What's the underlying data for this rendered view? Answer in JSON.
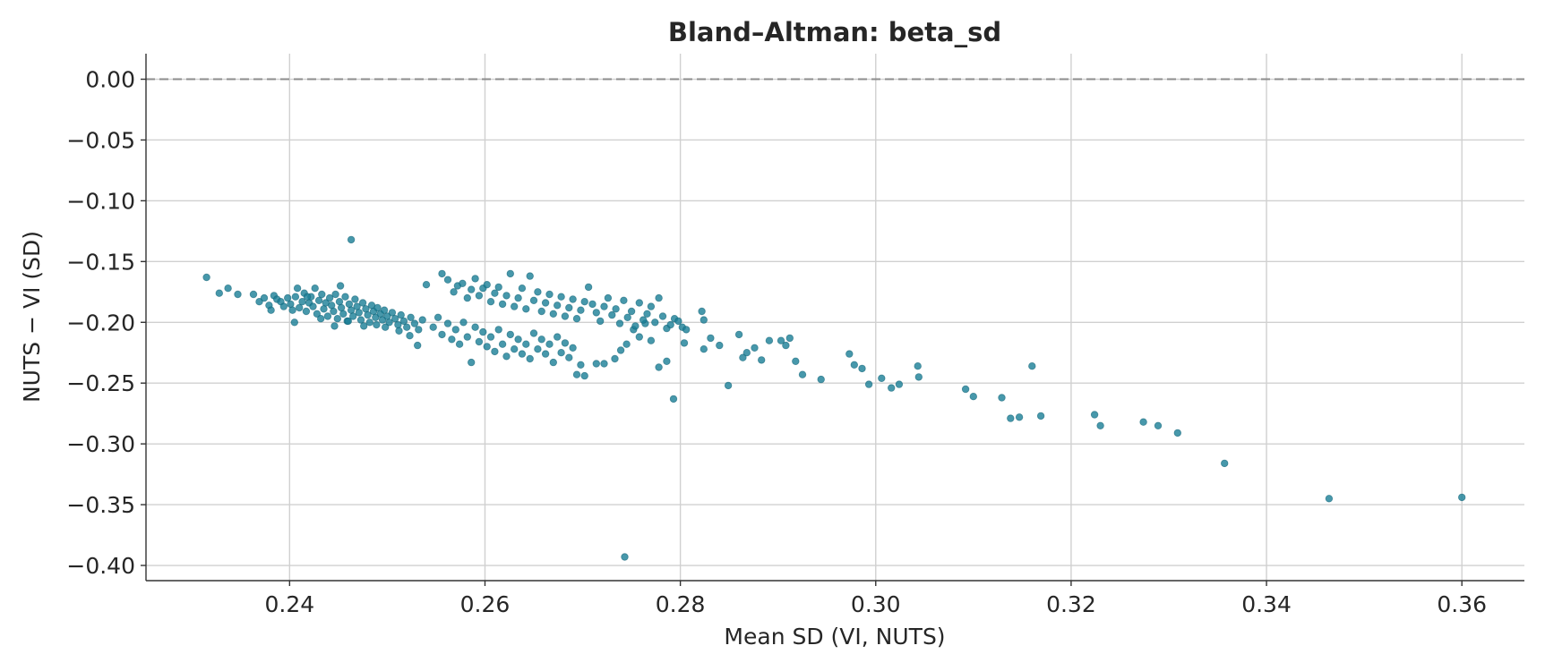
{
  "chart_data": {
    "type": "scatter",
    "title": "Bland–Altman: beta_sd",
    "xlabel": "Mean SD (VI, NUTS)",
    "ylabel": "NUTS − VI (SD)",
    "xlim": [
      0.2253,
      0.3664
    ],
    "ylim": [
      -0.4125,
      0.021
    ],
    "xticks": [
      0.24,
      0.26,
      0.28,
      0.3,
      0.32,
      0.34,
      0.36
    ],
    "xtick_labels": [
      "0.24",
      "0.26",
      "0.28",
      "0.30",
      "0.32",
      "0.34",
      "0.36"
    ],
    "yticks": [
      0.0,
      -0.05,
      -0.1,
      -0.15,
      -0.2,
      -0.25,
      -0.3,
      -0.35,
      -0.4
    ],
    "ytick_labels": [
      "0.00",
      "−0.05",
      "−0.10",
      "−0.15",
      "−0.20",
      "−0.25",
      "−0.30",
      "−0.35",
      "−0.40"
    ],
    "grid": true,
    "reference_line_y": 0.0,
    "colors": {
      "point": "#197e96",
      "reference_line": "#8c8c8c",
      "grid": "#d0d0d0"
    },
    "points": [
      [
        0.2315,
        -0.163
      ],
      [
        0.2328,
        -0.176
      ],
      [
        0.2337,
        -0.172
      ],
      [
        0.2347,
        -0.177
      ],
      [
        0.2363,
        -0.177
      ],
      [
        0.2369,
        -0.183
      ],
      [
        0.2374,
        -0.18
      ],
      [
        0.2379,
        -0.186
      ],
      [
        0.2381,
        -0.19
      ],
      [
        0.2384,
        -0.178
      ],
      [
        0.2387,
        -0.181
      ],
      [
        0.2391,
        -0.183
      ],
      [
        0.2394,
        -0.187
      ],
      [
        0.2398,
        -0.18
      ],
      [
        0.2401,
        -0.185
      ],
      [
        0.2403,
        -0.19
      ],
      [
        0.2406,
        -0.179
      ],
      [
        0.2408,
        -0.172
      ],
      [
        0.241,
        -0.188
      ],
      [
        0.2413,
        -0.183
      ],
      [
        0.2415,
        -0.176
      ],
      [
        0.2417,
        -0.191
      ],
      [
        0.242,
        -0.184
      ],
      [
        0.2422,
        -0.179
      ],
      [
        0.2424,
        -0.187
      ],
      [
        0.2426,
        -0.172
      ],
      [
        0.2428,
        -0.193
      ],
      [
        0.243,
        -0.182
      ],
      [
        0.2433,
        -0.177
      ],
      [
        0.2435,
        -0.189
      ],
      [
        0.2437,
        -0.184
      ],
      [
        0.2439,
        -0.195
      ],
      [
        0.2441,
        -0.18
      ],
      [
        0.2443,
        -0.186
      ],
      [
        0.2445,
        -0.191
      ],
      [
        0.2447,
        -0.177
      ],
      [
        0.2449,
        -0.197
      ],
      [
        0.2451,
        -0.183
      ],
      [
        0.2453,
        -0.188
      ],
      [
        0.2455,
        -0.193
      ],
      [
        0.2457,
        -0.179
      ],
      [
        0.2459,
        -0.199
      ],
      [
        0.2461,
        -0.185
      ],
      [
        0.2463,
        -0.19
      ],
      [
        0.2465,
        -0.195
      ],
      [
        0.2467,
        -0.181
      ],
      [
        0.2469,
        -0.187
      ],
      [
        0.2471,
        -0.192
      ],
      [
        0.2473,
        -0.198
      ],
      [
        0.2475,
        -0.184
      ],
      [
        0.2478,
        -0.189
      ],
      [
        0.248,
        -0.194
      ],
      [
        0.2482,
        -0.2
      ],
      [
        0.2484,
        -0.186
      ],
      [
        0.2486,
        -0.191
      ],
      [
        0.2488,
        -0.196
      ],
      [
        0.249,
        -0.188
      ],
      [
        0.2493,
        -0.193
      ],
      [
        0.2495,
        -0.198
      ],
      [
        0.2497,
        -0.19
      ],
      [
        0.25,
        -0.195
      ],
      [
        0.2502,
        -0.2
      ],
      [
        0.2505,
        -0.192
      ],
      [
        0.2508,
        -0.197
      ],
      [
        0.2511,
        -0.202
      ],
      [
        0.2514,
        -0.194
      ],
      [
        0.2517,
        -0.199
      ],
      [
        0.252,
        -0.204
      ],
      [
        0.2524,
        -0.196
      ],
      [
        0.2528,
        -0.201
      ],
      [
        0.2532,
        -0.206
      ],
      [
        0.2536,
        -0.198
      ],
      [
        0.2405,
        -0.2
      ],
      [
        0.2418,
        -0.179
      ],
      [
        0.2432,
        -0.197
      ],
      [
        0.2446,
        -0.203
      ],
      [
        0.2452,
        -0.17
      ],
      [
        0.246,
        -0.199
      ],
      [
        0.2476,
        -0.203
      ],
      [
        0.2489,
        -0.202
      ],
      [
        0.2498,
        -0.204
      ],
      [
        0.2512,
        -0.207
      ],
      [
        0.2523,
        -0.211
      ],
      [
        0.2531,
        -0.219
      ],
      [
        0.254,
        -0.169
      ],
      [
        0.2547,
        -0.204
      ],
      [
        0.2552,
        -0.196
      ],
      [
        0.2556,
        -0.21
      ],
      [
        0.2562,
        -0.201
      ],
      [
        0.2566,
        -0.214
      ],
      [
        0.257,
        -0.206
      ],
      [
        0.2574,
        -0.218
      ],
      [
        0.2578,
        -0.2
      ],
      [
        0.2582,
        -0.212
      ],
      [
        0.2586,
        -0.233
      ],
      [
        0.259,
        -0.204
      ],
      [
        0.2594,
        -0.216
      ],
      [
        0.2598,
        -0.208
      ],
      [
        0.2602,
        -0.22
      ],
      [
        0.2606,
        -0.212
      ],
      [
        0.261,
        -0.224
      ],
      [
        0.2614,
        -0.206
      ],
      [
        0.2618,
        -0.218
      ],
      [
        0.2622,
        -0.228
      ],
      [
        0.2626,
        -0.21
      ],
      [
        0.263,
        -0.222
      ],
      [
        0.2634,
        -0.214
      ],
      [
        0.2638,
        -0.226
      ],
      [
        0.2642,
        -0.218
      ],
      [
        0.2646,
        -0.23
      ],
      [
        0.265,
        -0.209
      ],
      [
        0.2654,
        -0.222
      ],
      [
        0.2658,
        -0.214
      ],
      [
        0.2662,
        -0.226
      ],
      [
        0.2666,
        -0.218
      ],
      [
        0.267,
        -0.233
      ],
      [
        0.2674,
        -0.212
      ],
      [
        0.2678,
        -0.225
      ],
      [
        0.2682,
        -0.217
      ],
      [
        0.2686,
        -0.229
      ],
      [
        0.269,
        -0.221
      ],
      [
        0.2694,
        -0.243
      ],
      [
        0.2698,
        -0.235
      ],
      [
        0.2702,
        -0.244
      ],
      [
        0.2714,
        -0.234
      ],
      [
        0.2722,
        -0.234
      ],
      [
        0.2733,
        -0.23
      ],
      [
        0.2739,
        -0.223
      ],
      [
        0.2745,
        -0.218
      ],
      [
        0.2752,
        -0.206
      ],
      [
        0.2758,
        -0.212
      ],
      [
        0.2764,
        -0.201
      ],
      [
        0.277,
        -0.215
      ],
      [
        0.2778,
        -0.237
      ],
      [
        0.2786,
        -0.232
      ],
      [
        0.2793,
        -0.263
      ],
      [
        0.2804,
        -0.217
      ],
      [
        0.2824,
        -0.222
      ],
      [
        0.2831,
        -0.213
      ],
      [
        0.284,
        -0.219
      ],
      [
        0.2849,
        -0.252
      ],
      [
        0.286,
        -0.21
      ],
      [
        0.2864,
        -0.229
      ],
      [
        0.2868,
        -0.225
      ],
      [
        0.2876,
        -0.221
      ],
      [
        0.2883,
        -0.231
      ],
      [
        0.2891,
        -0.215
      ],
      [
        0.2903,
        -0.215
      ],
      [
        0.2908,
        -0.219
      ],
      [
        0.2912,
        -0.213
      ],
      [
        0.2918,
        -0.232
      ],
      [
        0.2925,
        -0.243
      ],
      [
        0.2944,
        -0.247
      ],
      [
        0.2556,
        -0.16
      ],
      [
        0.2562,
        -0.165
      ],
      [
        0.2568,
        -0.175
      ],
      [
        0.2572,
        -0.17
      ],
      [
        0.2577,
        -0.168
      ],
      [
        0.2582,
        -0.18
      ],
      [
        0.2586,
        -0.173
      ],
      [
        0.259,
        -0.164
      ],
      [
        0.2594,
        -0.178
      ],
      [
        0.2598,
        -0.172
      ],
      [
        0.2602,
        -0.169
      ],
      [
        0.2606,
        -0.183
      ],
      [
        0.261,
        -0.176
      ],
      [
        0.2614,
        -0.171
      ],
      [
        0.2618,
        -0.185
      ],
      [
        0.2622,
        -0.178
      ],
      [
        0.2626,
        -0.16
      ],
      [
        0.263,
        -0.187
      ],
      [
        0.2634,
        -0.18
      ],
      [
        0.2638,
        -0.172
      ],
      [
        0.2642,
        -0.189
      ],
      [
        0.2646,
        -0.162
      ],
      [
        0.265,
        -0.182
      ],
      [
        0.2654,
        -0.175
      ],
      [
        0.2658,
        -0.191
      ],
      [
        0.2662,
        -0.184
      ],
      [
        0.2666,
        -0.177
      ],
      [
        0.267,
        -0.193
      ],
      [
        0.2674,
        -0.186
      ],
      [
        0.2678,
        -0.179
      ],
      [
        0.2682,
        -0.195
      ],
      [
        0.2686,
        -0.188
      ],
      [
        0.269,
        -0.181
      ],
      [
        0.2694,
        -0.197
      ],
      [
        0.2698,
        -0.19
      ],
      [
        0.2702,
        -0.183
      ],
      [
        0.2706,
        -0.171
      ],
      [
        0.271,
        -0.185
      ],
      [
        0.2714,
        -0.192
      ],
      [
        0.2718,
        -0.199
      ],
      [
        0.2722,
        -0.187
      ],
      [
        0.2726,
        -0.18
      ],
      [
        0.273,
        -0.194
      ],
      [
        0.2734,
        -0.189
      ],
      [
        0.2738,
        -0.201
      ],
      [
        0.2742,
        -0.182
      ],
      [
        0.2746,
        -0.196
      ],
      [
        0.275,
        -0.191
      ],
      [
        0.2754,
        -0.203
      ],
      [
        0.2758,
        -0.184
      ],
      [
        0.2762,
        -0.198
      ],
      [
        0.2766,
        -0.193
      ],
      [
        0.277,
        -0.187
      ],
      [
        0.2774,
        -0.2
      ],
      [
        0.2778,
        -0.18
      ],
      [
        0.2782,
        -0.195
      ],
      [
        0.2786,
        -0.205
      ],
      [
        0.279,
        -0.202
      ],
      [
        0.2794,
        -0.197
      ],
      [
        0.2798,
        -0.199
      ],
      [
        0.2802,
        -0.204
      ],
      [
        0.2806,
        -0.206
      ],
      [
        0.2822,
        -0.191
      ],
      [
        0.2824,
        -0.198
      ],
      [
        0.2973,
        -0.226
      ],
      [
        0.2978,
        -0.235
      ],
      [
        0.2986,
        -0.238
      ],
      [
        0.2993,
        -0.251
      ],
      [
        0.3006,
        -0.246
      ],
      [
        0.3016,
        -0.254
      ],
      [
        0.3024,
        -0.251
      ],
      [
        0.3043,
        -0.236
      ],
      [
        0.3044,
        -0.245
      ],
      [
        0.3092,
        -0.255
      ],
      [
        0.31,
        -0.261
      ],
      [
        0.3129,
        -0.262
      ],
      [
        0.3138,
        -0.279
      ],
      [
        0.3147,
        -0.278
      ],
      [
        0.316,
        -0.236
      ],
      [
        0.3169,
        -0.277
      ],
      [
        0.3224,
        -0.276
      ],
      [
        0.323,
        -0.285
      ],
      [
        0.3274,
        -0.282
      ],
      [
        0.3289,
        -0.285
      ],
      [
        0.3309,
        -0.291
      ],
      [
        0.3357,
        -0.316
      ],
      [
        0.3464,
        -0.345
      ],
      [
        0.36,
        -0.344
      ],
      [
        0.2463,
        -0.132
      ],
      [
        0.2743,
        -0.393
      ]
    ]
  }
}
